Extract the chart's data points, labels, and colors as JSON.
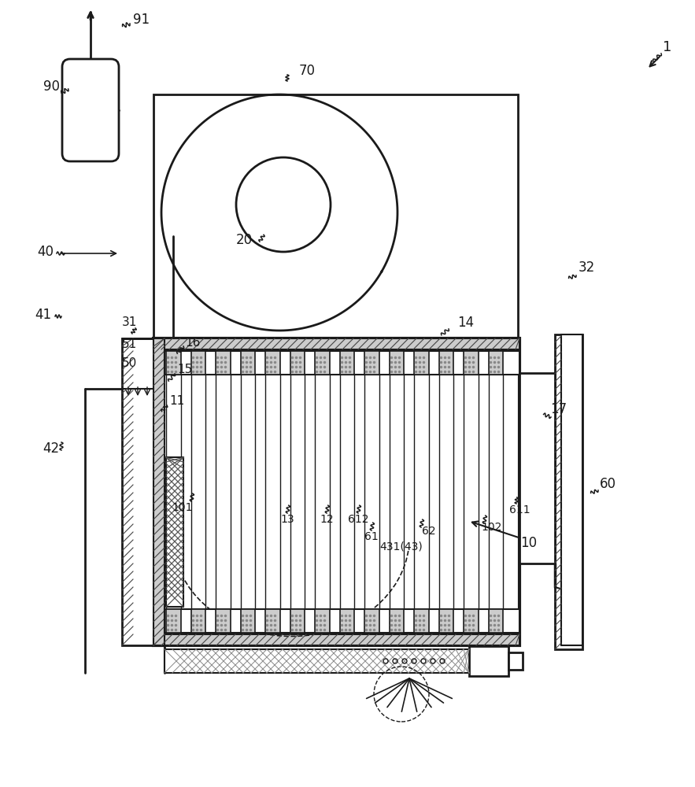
{
  "bg_color": "#ffffff",
  "lc": "#1a1a1a",
  "font_size": 11,
  "fig_width": 8.83,
  "fig_height": 10.0
}
